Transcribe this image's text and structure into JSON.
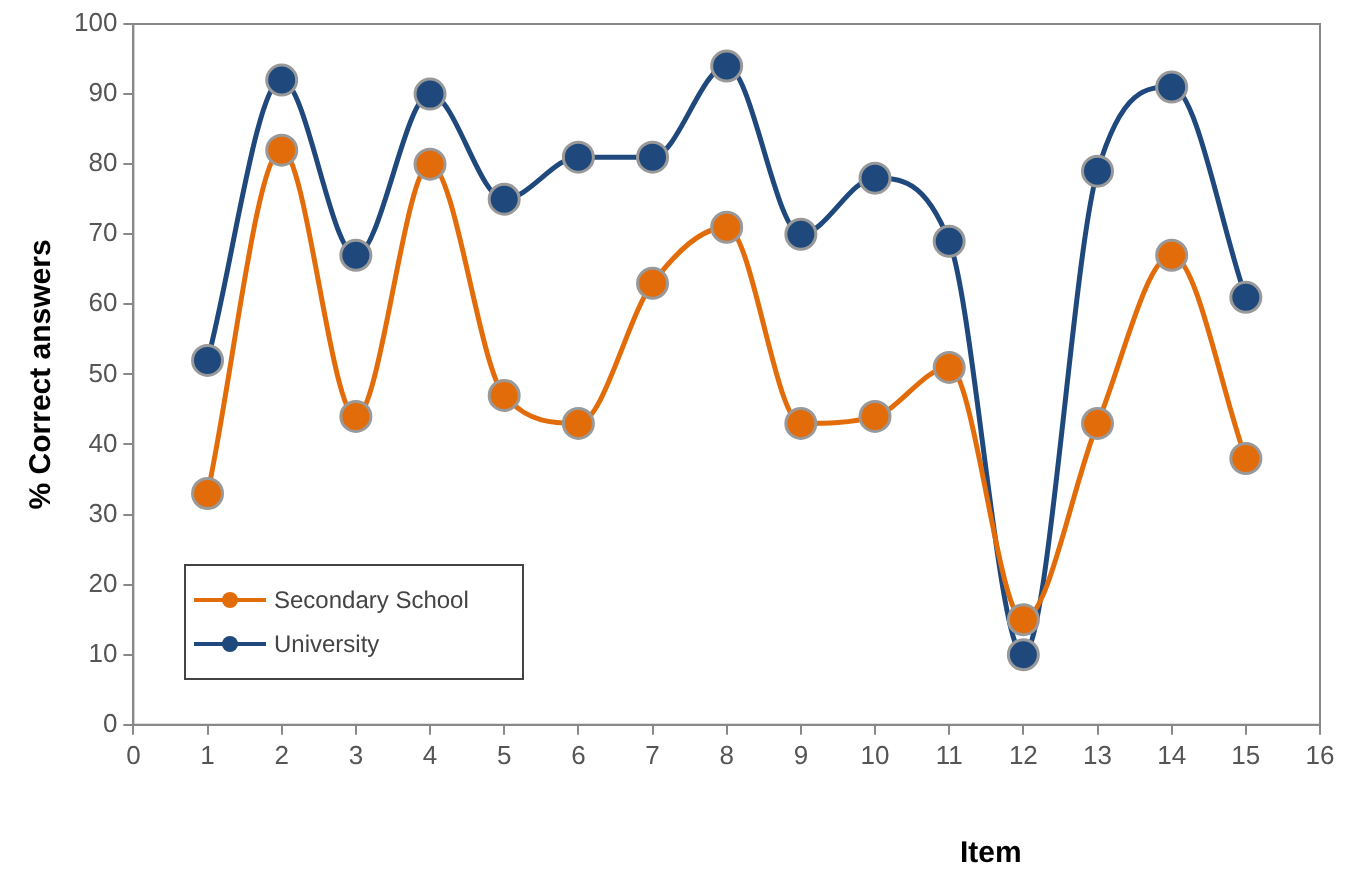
{
  "chart_data": {
    "type": "line",
    "xlabel": "Item",
    "ylabel": "% Correct answers",
    "x": [
      1,
      2,
      3,
      4,
      5,
      6,
      7,
      8,
      9,
      10,
      11,
      12,
      13,
      14,
      15
    ],
    "series": [
      {
        "name": "Secondary School",
        "color": "#e36c0a",
        "values": [
          33,
          82,
          44,
          80,
          47,
          43,
          63,
          71,
          43,
          44,
          51,
          15,
          43,
          67,
          38
        ]
      },
      {
        "name": "University",
        "color": "#1f497d",
        "values": [
          52,
          92,
          67,
          90,
          75,
          81,
          81,
          94,
          70,
          78,
          69,
          10,
          79,
          91,
          61
        ]
      }
    ],
    "xlim": [
      0,
      16
    ],
    "xticks": [
      0,
      1,
      2,
      3,
      4,
      5,
      6,
      7,
      8,
      9,
      10,
      11,
      12,
      13,
      14,
      15,
      16
    ],
    "ylim": [
      0,
      100
    ],
    "yticks": [
      0,
      10,
      20,
      30,
      40,
      50,
      60,
      70,
      80,
      90,
      100
    ],
    "grid": false,
    "legend": "bottom left",
    "marker": "circle",
    "line_style": "solid"
  }
}
